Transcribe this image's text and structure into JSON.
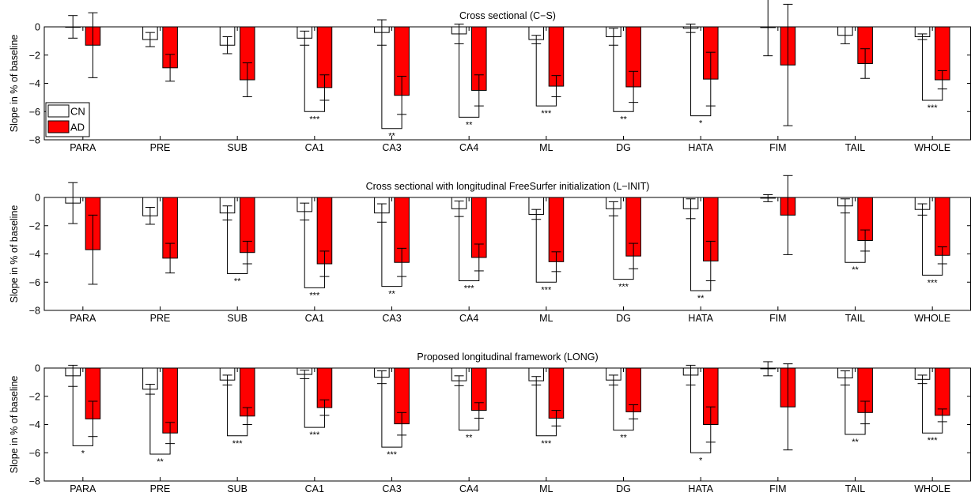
{
  "legend": {
    "entries": [
      {
        "label": "CN",
        "color": "#ffffff"
      },
      {
        "label": "AD",
        "color": "#ff0000"
      }
    ],
    "placement": "bottom-left of first panel"
  },
  "chart_data": [
    {
      "type": "bar",
      "title": "Cross sectional (C−S)",
      "ylabel": "Slope in % of baseline",
      "xlabel": "",
      "ylim": [
        -8,
        0
      ],
      "yticks": [
        0,
        -2,
        -4,
        -6,
        -8
      ],
      "ytick_labels": [
        "0",
        "−2",
        "−4",
        "−6",
        "−8"
      ],
      "grid": false,
      "categories": [
        "PARA",
        "PRE",
        "SUB",
        "CA1",
        "CA3",
        "CA4",
        "ML",
        "DG",
        "HATA",
        "FIM",
        "TAIL",
        "WHOLE"
      ],
      "series": [
        {
          "name": "CN",
          "color": "#ffffff",
          "values": [
            0.0,
            -0.9,
            -1.3,
            -0.8,
            -0.4,
            -0.5,
            -0.9,
            -0.7,
            -0.1,
            -0.05,
            -0.6,
            -0.7
          ],
          "err": [
            0.8,
            0.5,
            0.6,
            0.5,
            0.9,
            0.7,
            0.3,
            0.6,
            0.3,
            2.0,
            0.6,
            0.2
          ]
        },
        {
          "name": "AD",
          "color": "#ff0000",
          "values": [
            -1.3,
            -2.9,
            -3.75,
            -4.3,
            -4.85,
            -4.5,
            -4.2,
            -4.25,
            -3.7,
            -2.7,
            -2.6,
            -3.75
          ],
          "err": [
            2.3,
            0.95,
            1.2,
            0.9,
            1.35,
            1.1,
            0.75,
            1.1,
            1.9,
            4.3,
            1.05,
            0.65
          ]
        }
      ],
      "significance": [
        {
          "category": "CA1",
          "label": "***",
          "y": -6.0
        },
        {
          "category": "CA3",
          "label": "**",
          "y": -7.2
        },
        {
          "category": "CA4",
          "label": "**",
          "y": -6.4
        },
        {
          "category": "ML",
          "label": "***",
          "y": -5.6
        },
        {
          "category": "DG",
          "label": "**",
          "y": -6.0
        },
        {
          "category": "HATA",
          "label": "*",
          "y": -6.3
        },
        {
          "category": "WHOLE",
          "label": "***",
          "y": -5.2
        }
      ]
    },
    {
      "type": "bar",
      "title": "Cross sectional with longitudinal FreeSurfer initialization (L−INIT)",
      "ylabel": "Slope in % of baseline",
      "xlabel": "",
      "ylim": [
        -8,
        0
      ],
      "yticks": [
        0,
        -2,
        -4,
        -6,
        -8
      ],
      "ytick_labels": [
        "0",
        "−2",
        "−4",
        "−6",
        "−8"
      ],
      "grid": false,
      "categories": [
        "PARA",
        "PRE",
        "SUB",
        "CA1",
        "CA3",
        "CA4",
        "ML",
        "DG",
        "HATA",
        "FIM",
        "TAIL",
        "WHOLE"
      ],
      "series": [
        {
          "name": "CN",
          "color": "#ffffff",
          "values": [
            -0.4,
            -1.3,
            -1.1,
            -1.0,
            -1.1,
            -0.8,
            -1.2,
            -0.8,
            -0.8,
            -0.05,
            -0.6,
            -0.85
          ],
          "err": [
            1.45,
            0.6,
            0.5,
            0.6,
            0.65,
            0.55,
            0.35,
            0.5,
            0.7,
            0.25,
            0.5,
            0.4
          ]
        },
        {
          "name": "AD",
          "color": "#ff0000",
          "values": [
            -3.7,
            -4.3,
            -3.9,
            -4.7,
            -4.6,
            -4.25,
            -4.55,
            -4.15,
            -4.5,
            -1.25,
            -3.05,
            -4.1
          ],
          "err": [
            2.45,
            1.05,
            0.8,
            0.9,
            1.0,
            0.95,
            0.7,
            0.9,
            1.4,
            2.8,
            0.75,
            0.6
          ]
        }
      ],
      "significance": [
        {
          "category": "SUB",
          "label": "**",
          "y": -5.4
        },
        {
          "category": "CA1",
          "label": "***",
          "y": -6.4
        },
        {
          "category": "CA3",
          "label": "**",
          "y": -6.3
        },
        {
          "category": "CA4",
          "label": "***",
          "y": -5.9
        },
        {
          "category": "ML",
          "label": "***",
          "y": -6.0
        },
        {
          "category": "DG",
          "label": "***",
          "y": -5.8
        },
        {
          "category": "HATA",
          "label": "**",
          "y": -6.6
        },
        {
          "category": "TAIL",
          "label": "**",
          "y": -4.6
        },
        {
          "category": "WHOLE",
          "label": "***",
          "y": -5.5
        }
      ]
    },
    {
      "type": "bar",
      "title": "Proposed longitudinal framework (LONG)",
      "ylabel": "Slope in % of baseline",
      "xlabel": "",
      "ylim": [
        -8,
        0
      ],
      "yticks": [
        0,
        -2,
        -4,
        -6,
        -8
      ],
      "ytick_labels": [
        "0",
        "−2",
        "−4",
        "−6",
        "−8"
      ],
      "grid": false,
      "categories": [
        "PARA",
        "PRE",
        "SUB",
        "CA1",
        "CA3",
        "CA4",
        "ML",
        "DG",
        "HATA",
        "FIM",
        "TAIL",
        "WHOLE"
      ],
      "series": [
        {
          "name": "CN",
          "color": "#ffffff",
          "values": [
            -0.55,
            -1.5,
            -0.85,
            -0.45,
            -0.65,
            -0.9,
            -0.9,
            -0.85,
            -0.5,
            -0.05,
            -0.7,
            -0.8
          ],
          "err": [
            0.75,
            0.35,
            0.35,
            0.3,
            0.45,
            0.35,
            0.3,
            0.35,
            0.7,
            0.5,
            0.5,
            0.3
          ]
        },
        {
          "name": "AD",
          "color": "#ff0000",
          "values": [
            -3.6,
            -4.6,
            -3.4,
            -2.8,
            -3.95,
            -3.0,
            -3.55,
            -3.1,
            -4.0,
            -2.75,
            -3.15,
            -3.35
          ],
          "err": [
            1.25,
            0.75,
            0.6,
            0.55,
            0.8,
            0.55,
            0.55,
            0.5,
            1.25,
            3.05,
            0.8,
            0.45
          ]
        }
      ],
      "significance": [
        {
          "category": "PARA",
          "label": "*",
          "y": -5.5
        },
        {
          "category": "PRE",
          "label": "**",
          "y": -6.1
        },
        {
          "category": "SUB",
          "label": "***",
          "y": -4.8
        },
        {
          "category": "CA1",
          "label": "***",
          "y": -4.2
        },
        {
          "category": "CA3",
          "label": "***",
          "y": -5.6
        },
        {
          "category": "CA4",
          "label": "**",
          "y": -4.4
        },
        {
          "category": "ML",
          "label": "***",
          "y": -4.8
        },
        {
          "category": "DG",
          "label": "**",
          "y": -4.4
        },
        {
          "category": "HATA",
          "label": "*",
          "y": -6.0
        },
        {
          "category": "TAIL",
          "label": "**",
          "y": -4.7
        },
        {
          "category": "WHOLE",
          "label": "***",
          "y": -4.6
        }
      ]
    }
  ]
}
